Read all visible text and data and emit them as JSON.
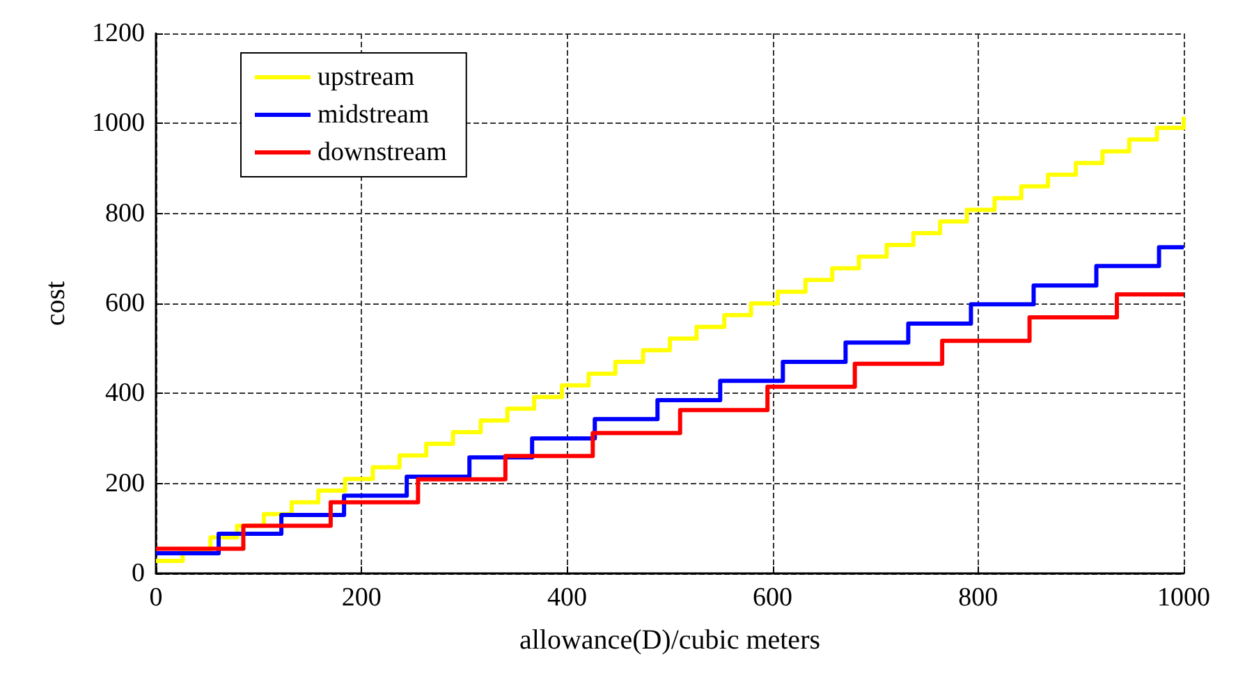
{
  "chart_data": {
    "type": "step",
    "xlabel": "allowance(D)/cubic meters",
    "ylabel": "cost",
    "xlim": [
      0,
      1000
    ],
    "xticks": [
      0,
      200,
      400,
      600,
      800,
      1000
    ],
    "ylim": [
      0,
      1200
    ],
    "yticks": [
      0,
      200,
      400,
      600,
      800,
      1000,
      1200
    ],
    "grid": true,
    "legend": "top left",
    "line_style": "solid",
    "marker": "none",
    "series": [
      {
        "name": "upstream",
        "color": "#ffff00",
        "x": [
          0,
          26,
          53,
          79,
          105,
          132,
          158,
          184,
          211,
          237,
          263,
          289,
          316,
          342,
          368,
          395,
          421,
          447,
          474,
          500,
          526,
          553,
          579,
          605,
          632,
          658,
          684,
          711,
          737,
          763,
          789,
          816,
          842,
          868,
          895,
          921,
          947,
          974,
          1000
        ],
        "values": [
          28,
          54,
          80,
          106,
          132,
          158,
          184,
          210,
          236,
          262,
          288,
          314,
          340,
          366,
          392,
          418,
          444,
          470,
          496,
          522,
          548,
          574,
          600,
          626,
          652,
          678,
          704,
          730,
          756,
          782,
          808,
          834,
          860,
          886,
          912,
          938,
          964,
          990,
          1015
        ]
      },
      {
        "name": "midstream",
        "color": "#0000ff",
        "x": [
          0,
          61,
          122,
          183,
          244,
          305,
          366,
          427,
          488,
          549,
          610,
          671,
          732,
          793,
          854,
          915,
          976,
          1000
        ],
        "values": [
          45,
          88,
          130,
          173,
          215,
          258,
          300,
          343,
          385,
          428,
          470,
          513,
          555,
          598,
          640,
          683,
          725,
          725
        ]
      },
      {
        "name": "downstream",
        "color": "#ff0000",
        "x": [
          0,
          85,
          170,
          255,
          340,
          425,
          510,
          595,
          680,
          765,
          850,
          935,
          1000
        ],
        "values": [
          55,
          106,
          158,
          209,
          261,
          312,
          363,
          415,
          466,
          517,
          569,
          620,
          620
        ]
      }
    ]
  }
}
